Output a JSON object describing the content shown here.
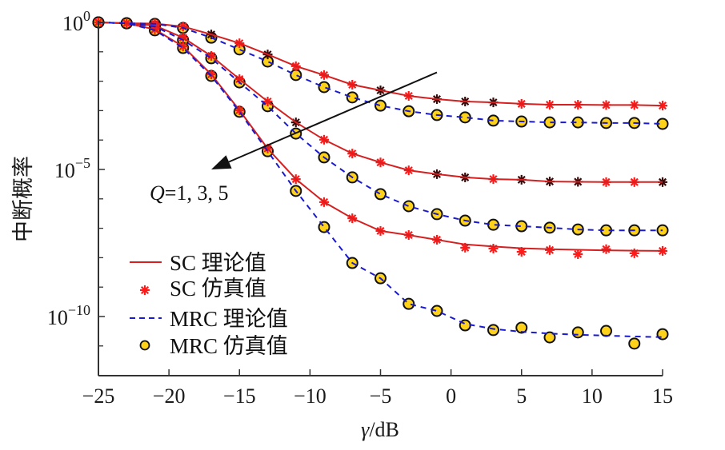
{
  "chart_data": {
    "type": "line",
    "title": "",
    "xlabel": "γ/dB",
    "ylabel": "中断概率",
    "xlim": [
      -25,
      15
    ],
    "ylim_log10": [
      -12,
      0
    ],
    "yscale": "log",
    "grid": false,
    "x_ticks": [
      -25,
      -20,
      -15,
      -10,
      -5,
      0,
      5,
      10,
      15
    ],
    "x_tick_labels": [
      "−25",
      "−20",
      "−15",
      "−10",
      "−5",
      "0",
      "5",
      "10",
      "15"
    ],
    "y_major_ticks_log10": [
      0,
      -5,
      -10
    ],
    "y_tick_labels": [
      {
        "base": "10",
        "exp": "0"
      },
      {
        "base": "10",
        "exp": "−5"
      },
      {
        "base": "10",
        "exp": "−10"
      }
    ],
    "y_minor_ticks_log10": [
      -1,
      -2,
      -3,
      -4,
      -6,
      -7,
      -8,
      -9,
      -11
    ],
    "x": [
      -25,
      -23,
      -21,
      -19,
      -17,
      -15,
      -13,
      -11,
      -9,
      -7,
      -5,
      -3,
      -1,
      1,
      3,
      5,
      7,
      9,
      11,
      13,
      15
    ],
    "series": [
      {
        "name": "SC 理论值 Q=1",
        "scheme": "SC",
        "kind": "theory",
        "Q": 1,
        "log10_values": [
          0,
          -0.03,
          -0.04,
          -0.14,
          -0.41,
          -0.71,
          -1.09,
          -1.49,
          -1.79,
          -2.12,
          -2.31,
          -2.5,
          -2.61,
          -2.69,
          -2.72,
          -2.77,
          -2.8,
          -2.8,
          -2.81,
          -2.81,
          -2.83
        ]
      },
      {
        "name": "SC 仿真值 Q=1",
        "scheme": "SC",
        "kind": "simulation",
        "Q": 1,
        "log10_values": [
          0,
          -0.03,
          -0.04,
          -0.14,
          -0.41,
          -0.71,
          -1.09,
          -1.49,
          -1.79,
          -2.12,
          -2.31,
          -2.5,
          -2.61,
          -2.69,
          -2.72,
          -2.77,
          -2.8,
          -2.8,
          -2.81,
          -2.81,
          -2.83
        ],
        "dark_marker_x": [
          -17,
          -13,
          -5,
          -1,
          1,
          3
        ]
      },
      {
        "name": "MRC 理论值 Q=1",
        "scheme": "MRC",
        "kind": "theory",
        "Q": 1,
        "log10_values": [
          0,
          -0.03,
          -0.05,
          -0.19,
          -0.52,
          -0.92,
          -1.33,
          -1.79,
          -2.2,
          -2.55,
          -2.83,
          -3.02,
          -3.15,
          -3.23,
          -3.34,
          -3.37,
          -3.4,
          -3.4,
          -3.42,
          -3.42,
          -3.45
        ]
      },
      {
        "name": "MRC 仿真值 Q=1",
        "scheme": "MRC",
        "kind": "simulation",
        "Q": 1,
        "log10_values": [
          0,
          -0.03,
          -0.05,
          -0.19,
          -0.52,
          -0.92,
          -1.33,
          -1.79,
          -2.2,
          -2.55,
          -2.83,
          -3.02,
          -3.15,
          -3.23,
          -3.34,
          -3.37,
          -3.4,
          -3.4,
          -3.42,
          -3.42,
          -3.45
        ]
      },
      {
        "name": "SC 理论值 Q=3",
        "scheme": "SC",
        "kind": "theory",
        "Q": 3,
        "log10_values": [
          0,
          -0.03,
          -0.11,
          -0.52,
          -1.14,
          -1.93,
          -2.69,
          -3.4,
          -3.99,
          -4.46,
          -4.76,
          -5.03,
          -5.16,
          -5.27,
          -5.33,
          -5.35,
          -5.41,
          -5.42,
          -5.43,
          -5.43,
          -5.43
        ]
      },
      {
        "name": "SC 仿真值 Q=3",
        "scheme": "SC",
        "kind": "simulation",
        "Q": 3,
        "log10_values": [
          0,
          -0.03,
          -0.11,
          -0.52,
          -1.14,
          -1.93,
          -2.69,
          -3.4,
          -3.99,
          -4.46,
          -4.76,
          -5.03,
          -5.16,
          -5.27,
          -5.33,
          -5.35,
          -5.41,
          -5.42,
          -5.43,
          -5.43,
          -5.43
        ],
        "dark_marker_x": [
          -11,
          -1,
          1,
          5,
          7,
          9,
          15
        ]
      },
      {
        "name": "MRC 理论值 Q=3",
        "scheme": "MRC",
        "kind": "theory",
        "Q": 3,
        "log10_values": [
          0,
          -0.03,
          -0.14,
          -0.6,
          -1.22,
          -2.04,
          -2.85,
          -3.78,
          -4.59,
          -5.27,
          -5.84,
          -6.25,
          -6.52,
          -6.74,
          -6.88,
          -6.93,
          -6.98,
          -7.04,
          -7.07,
          -7.07,
          -7.07
        ]
      },
      {
        "name": "MRC 仿真值 Q=3",
        "scheme": "MRC",
        "kind": "simulation",
        "Q": 3,
        "log10_values": [
          0,
          -0.03,
          -0.14,
          -0.6,
          -1.22,
          -2.04,
          -2.85,
          -3.78,
          -4.59,
          -5.27,
          -5.84,
          -6.25,
          -6.52,
          -6.74,
          -6.88,
          -6.93,
          -6.98,
          -7.04,
          -7.07,
          -7.07,
          -7.07
        ]
      },
      {
        "name": "SC 理论值 Q=5",
        "scheme": "SC",
        "kind": "theory",
        "Q": 5,
        "log10_values": [
          0,
          -0.03,
          -0.24,
          -0.82,
          -1.77,
          -2.99,
          -4.29,
          -5.33,
          -6.11,
          -6.66,
          -7.09,
          -7.23,
          -7.39,
          -7.55,
          -7.62,
          -7.68,
          -7.71,
          -7.73,
          -7.75,
          -7.76,
          -7.77
        ]
      },
      {
        "name": "SC 仿真值 Q=5",
        "scheme": "SC",
        "kind": "simulation",
        "Q": 5,
        "log10_values": [
          0,
          -0.03,
          -0.24,
          -0.82,
          -1.77,
          -2.99,
          -4.29,
          -5.33,
          -6.11,
          -6.66,
          -7.09,
          -7.23,
          -7.39,
          -7.66,
          -7.69,
          -7.8,
          -7.74,
          -7.88,
          -7.71,
          -7.85,
          -7.77
        ]
      },
      {
        "name": "MRC 理论值 Q=5",
        "scheme": "MRC",
        "kind": "theory",
        "Q": 5,
        "log10_values": [
          0,
          -0.03,
          -0.27,
          -0.87,
          -1.82,
          -3.04,
          -4.38,
          -5.73,
          -6.96,
          -8.18,
          -8.7,
          -9.57,
          -9.81,
          -10.25,
          -10.42,
          -10.52,
          -10.58,
          -10.62,
          -10.65,
          -10.68,
          -10.7
        ]
      },
      {
        "name": "MRC 仿真值 Q=5",
        "scheme": "MRC",
        "kind": "simulation",
        "Q": 5,
        "log10_values": [
          0,
          -0.03,
          -0.27,
          -0.87,
          -1.82,
          -3.04,
          -4.38,
          -5.73,
          -6.96,
          -8.18,
          -8.7,
          -9.57,
          -9.81,
          -10.3,
          -10.46,
          -10.38,
          -10.71,
          -10.54,
          -10.49,
          -10.92,
          -10.6
        ]
      }
    ],
    "legend": {
      "position": "lower-left",
      "entries": [
        {
          "label": "SC 理论值",
          "style": "solid-line",
          "color": "#d42020"
        },
        {
          "label": "SC 仿真值",
          "style": "asterisk",
          "color": "#ff1a1a"
        },
        {
          "label": "MRC 理论值",
          "style": "dashed-line",
          "color": "#1a1acc"
        },
        {
          "label": "MRC 仿真值",
          "style": "circle",
          "color": "#ffd21a"
        }
      ]
    },
    "annotations": [
      {
        "text_italic": "Q",
        "text": "=1, 3, 5",
        "type": "arrow",
        "arrow_from": {
          "x": -1,
          "log10": -1.7
        },
        "arrow_to": {
          "x": -17,
          "log10": -5.0
        }
      }
    ],
    "colors": {
      "sc_line": "#d42020",
      "sc_marker": "#ff1a1a",
      "sc_marker_dark": "#3a0a0a",
      "mrc_line": "#1a1acc",
      "mrc_marker_fill": "#ffd21a",
      "mrc_marker_edge": "#111111",
      "axis": "#333333",
      "text": "#111111"
    }
  }
}
